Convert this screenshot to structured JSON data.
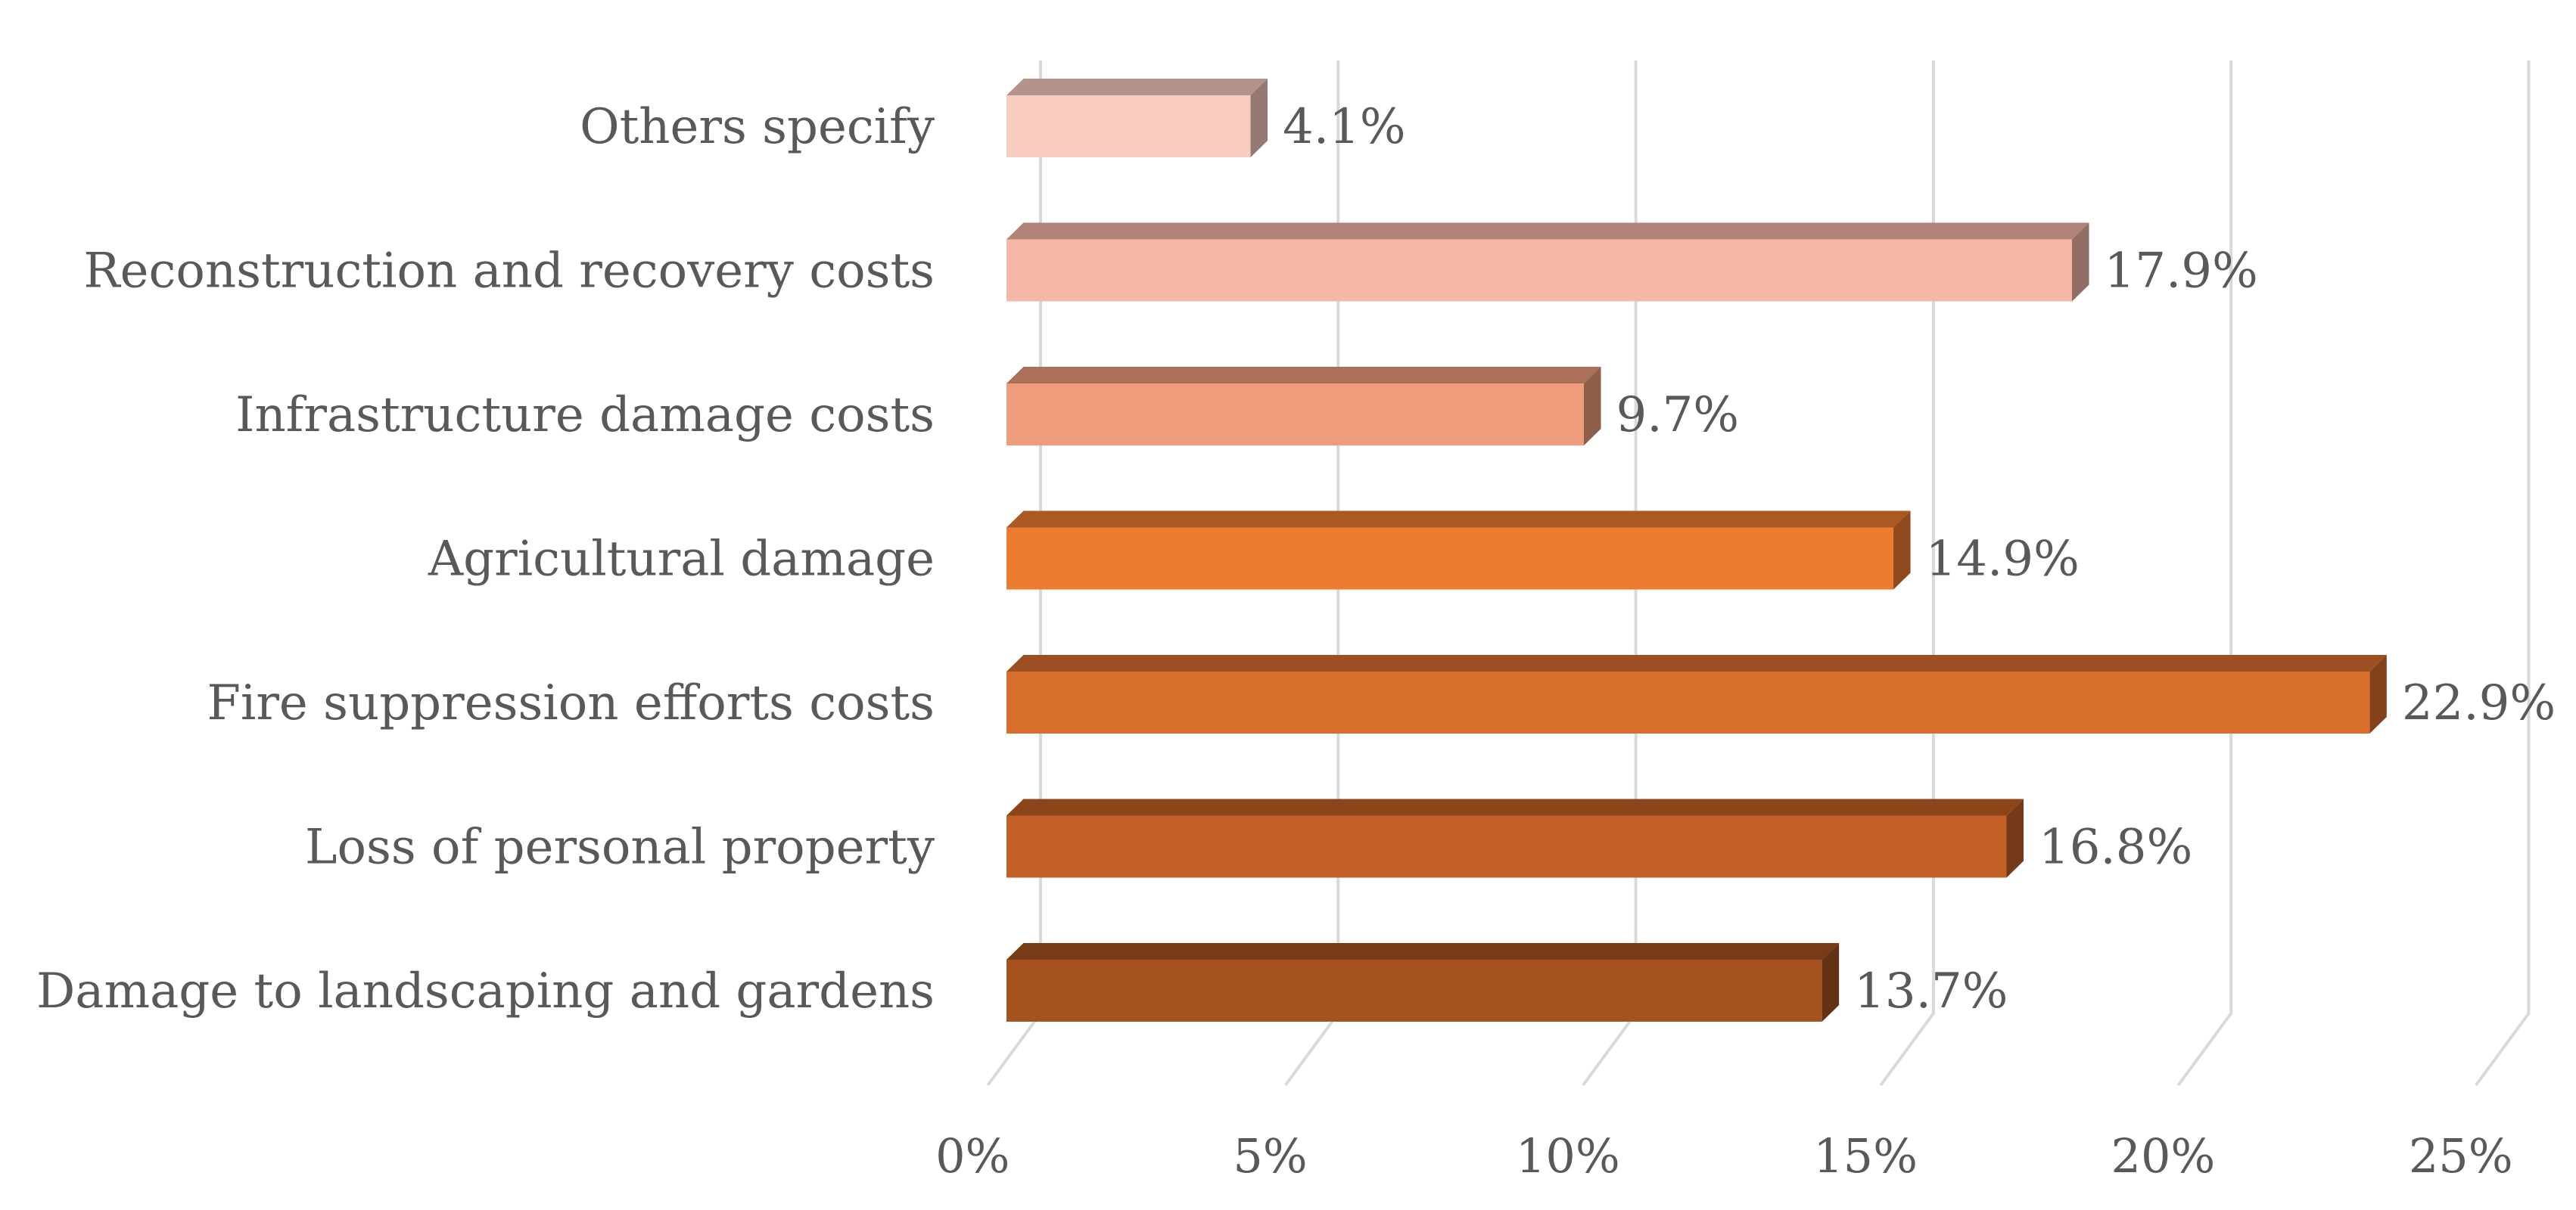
{
  "chart_data": {
    "type": "bar",
    "orientation": "horizontal",
    "style": "3d",
    "title": "",
    "xlabel": "",
    "ylabel": "",
    "xlim": [
      0,
      25
    ],
    "x_ticks": [
      "0%",
      "5%",
      "10%",
      "15%",
      "20%",
      "25%"
    ],
    "grid": true,
    "legend": "none",
    "categories": [
      "Others specify",
      "Reconstruction and recovery costs",
      "Infrastructure damage costs",
      "Agricultural damage",
      "Fire suppression efforts costs",
      "Loss of personal property",
      "Damage to landscaping and gardens"
    ],
    "values": [
      4.1,
      17.9,
      9.7,
      14.9,
      22.9,
      16.8,
      13.7
    ],
    "value_labels": [
      "4.1%",
      "17.9%",
      "9.7%",
      "14.9%",
      "22.9%",
      "16.8%",
      "13.7%"
    ],
    "colors": [
      "#f9ccc0",
      "#f5b8a6",
      "#ef9c7c",
      "#ec7c30",
      "#d86e2c",
      "#c36026",
      "#a5521f"
    ]
  }
}
